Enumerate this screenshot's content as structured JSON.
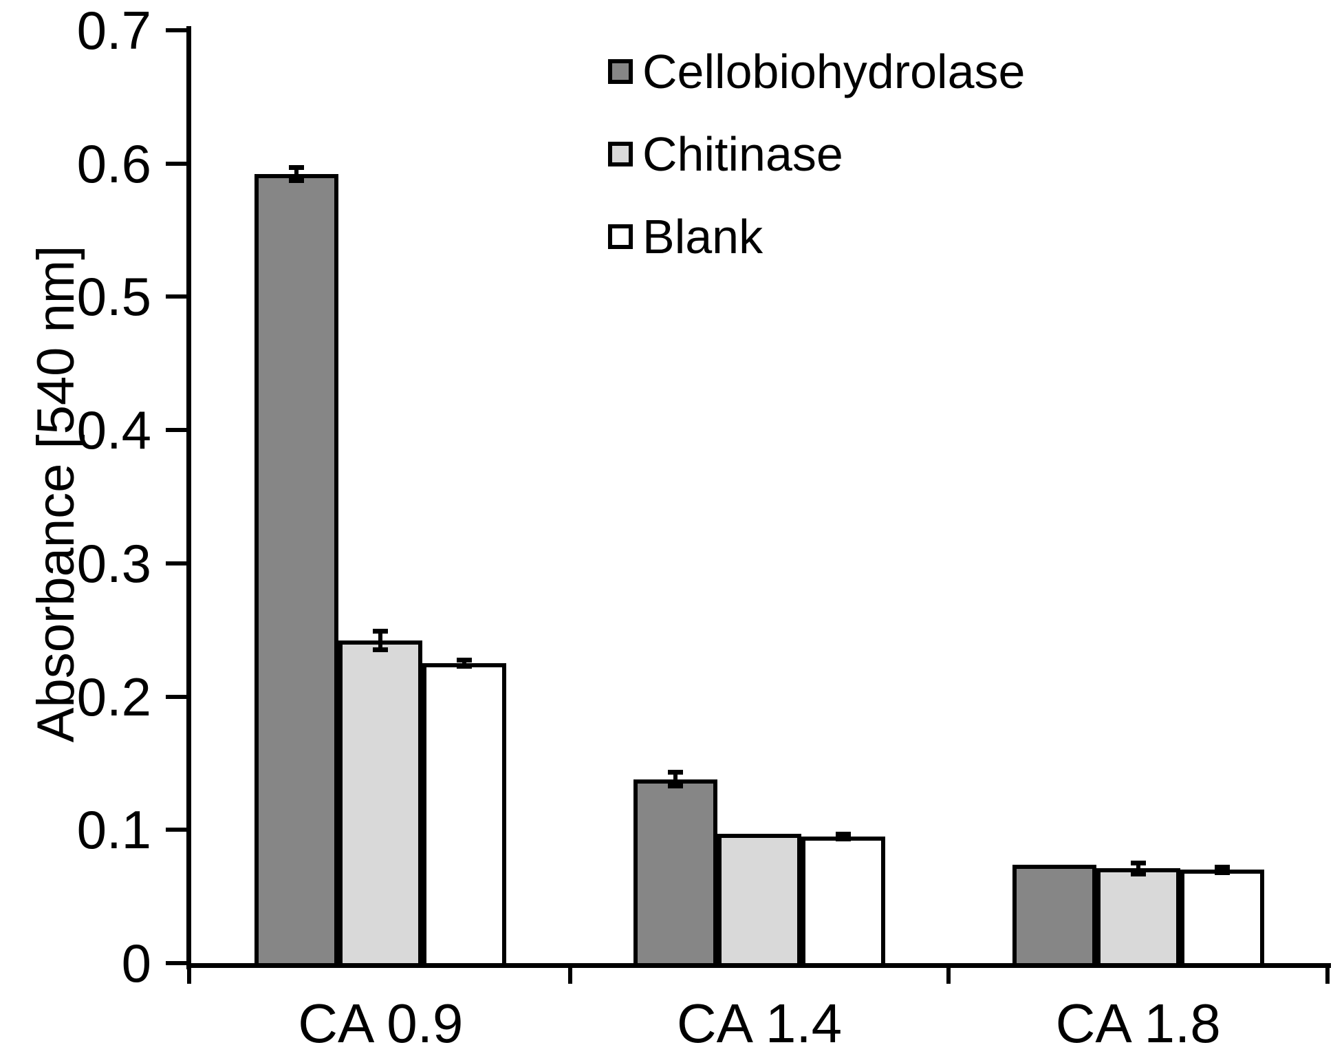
{
  "figure": {
    "background": "#ffffff",
    "text_color": "#000000"
  },
  "chart_data": {
    "type": "bar",
    "title": "",
    "xlabel": "",
    "ylabel": "Absorbance [540 nm]",
    "ylim": [
      0,
      0.7
    ],
    "grid": false,
    "legend_position": "top-center",
    "yticks": [
      0,
      0.1,
      0.2,
      0.3,
      0.4,
      0.5,
      0.6,
      0.7
    ],
    "ytick_labels": [
      "0",
      "0.1",
      "0.2",
      "0.3",
      "0.4",
      "0.5",
      "0.6",
      "0.7"
    ],
    "categories": [
      "CA 0.9",
      "CA 1.4",
      "CA 1.8"
    ],
    "series": [
      {
        "name": "Cellobiohydrolase",
        "fill": "#868686",
        "border": "#000000",
        "values": [
          0.592,
          0.138,
          0.074
        ],
        "errors": [
          0.005,
          0.005,
          0
        ]
      },
      {
        "name": "Chitinase",
        "fill": "#D9D9D9",
        "border": "#000000",
        "values": [
          0.242,
          0.097,
          0.071
        ],
        "errors": [
          0.007,
          0,
          0.004
        ]
      },
      {
        "name": "Blank",
        "fill": "#FFFFFF",
        "border": "#000000",
        "values": [
          0.225,
          0.095,
          0.07
        ],
        "errors": [
          0.0025,
          0.002,
          0.002
        ]
      }
    ]
  }
}
